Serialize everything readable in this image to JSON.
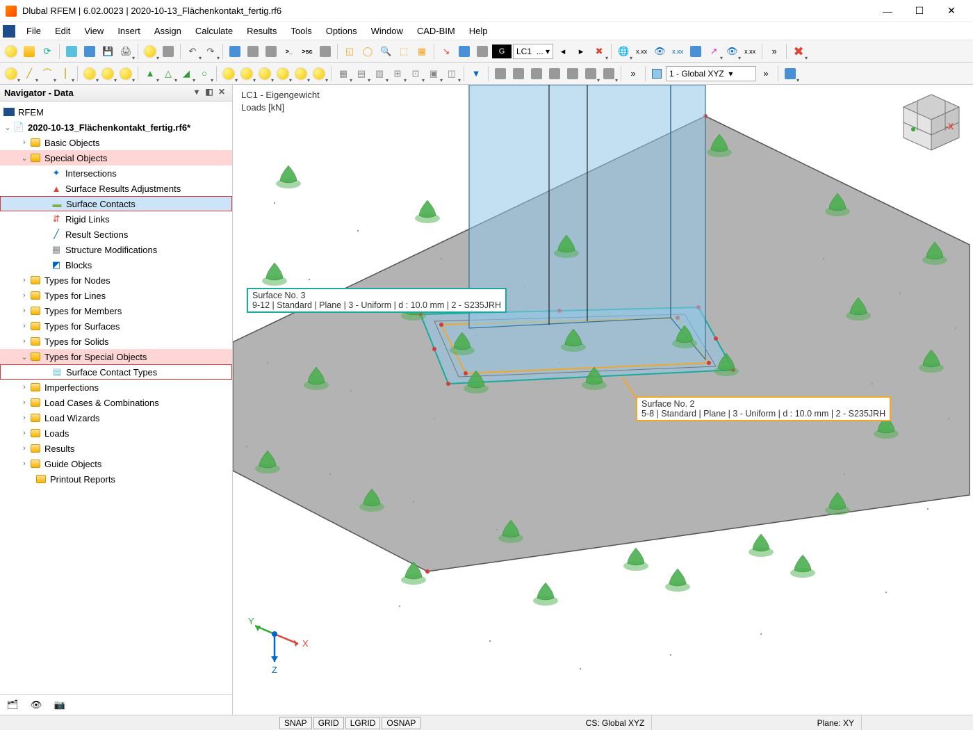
{
  "window": {
    "title": "Dlubal RFEM | 6.02.0023 | 2020-10-13_Flächenkontakt_fertig.rf6"
  },
  "menu": {
    "items": [
      "File",
      "Edit",
      "View",
      "Insert",
      "Assign",
      "Calculate",
      "Results",
      "Tools",
      "Options",
      "Window",
      "CAD-BIM",
      "Help"
    ]
  },
  "toolbar2": {
    "loadcase_badge": "G",
    "loadcase_text": "LC1",
    "dots": "...",
    "cs_dropdown": "1 - Global XYZ"
  },
  "navigator": {
    "title": "Navigator - Data",
    "root": "RFEM",
    "file": "2020-10-13_Flächenkontakt_fertig.rf6*",
    "items": {
      "basic_objects": "Basic Objects",
      "special_objects": "Special Objects",
      "intersections": "Intersections",
      "surf_results_adj": "Surface Results Adjustments",
      "surface_contacts": "Surface Contacts",
      "rigid_links": "Rigid Links",
      "result_sections": "Result Sections",
      "structure_mods": "Structure Modifications",
      "blocks": "Blocks",
      "types_nodes": "Types for Nodes",
      "types_lines": "Types for Lines",
      "types_members": "Types for Members",
      "types_surfaces": "Types for Surfaces",
      "types_solids": "Types for Solids",
      "types_special": "Types for Special Objects",
      "surface_contact_types": "Surface Contact Types",
      "imperfections": "Imperfections",
      "load_cases": "Load Cases & Combinations",
      "load_wizards": "Load Wizards",
      "loads": "Loads",
      "results": "Results",
      "guide_objects": "Guide Objects",
      "printout": "Printout Reports"
    }
  },
  "viewport": {
    "lc_line1": "LC1 - Eigengewicht",
    "lc_line2": "Loads [kN]",
    "axis_x": "X",
    "axis_y": "Y",
    "axis_z": "Z",
    "tip3_title": "Surface No. 3",
    "tip3_detail": "9-12 | Standard | Plane | 3 - Uniform | d : 10.0 mm | 2 - S235JRH",
    "tip3_color": "#1aa99a",
    "tip2_title": "Surface No. 2",
    "tip2_detail": "5-8 | Standard | Plane | 3 - Uniform | d : 10.0 mm | 2 - S235JRH",
    "tip2_color": "#f5a623",
    "navcube_x": "-X"
  },
  "status": {
    "snap": "SNAP",
    "grid": "GRID",
    "lgrid": "LGRID",
    "osnap": "OSNAP",
    "cs": "CS: Global XYZ",
    "plane": "Plane: XY"
  },
  "colors": {
    "slab": "#9a9a9a",
    "slab_edge": "#6f6f6f",
    "column": "#8fc7e8",
    "column_edge": "#3a6f8f",
    "support": "#4caf50",
    "support_edge": "#2e7d32",
    "node": "#d43a3a"
  }
}
